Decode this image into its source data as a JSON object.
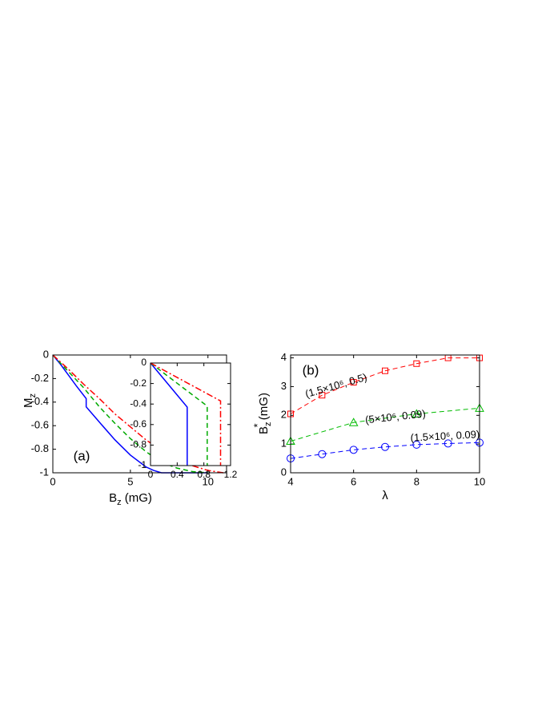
{
  "chart_data": [
    {
      "type": "line",
      "panel_label": "(a)",
      "xlabel": [
        "B",
        "z",
        " (mG)"
      ],
      "ylabel": [
        "M",
        "z"
      ],
      "xlim": [
        0,
        11.2
      ],
      "ylim": [
        -1,
        0
      ],
      "xticks": [
        0,
        5,
        10
      ],
      "yticks": [
        0,
        -0.2,
        -0.4,
        -0.6,
        -0.8,
        -1
      ],
      "series": [
        {
          "color": "#0000ff",
          "dash": "solid",
          "x": [
            0,
            0.5,
            1,
            1.5,
            2.15,
            2.15,
            3,
            4,
            5,
            6,
            6.5,
            7,
            10
          ],
          "values": [
            0,
            -0.08,
            -0.17,
            -0.26,
            -0.37,
            -0.44,
            -0.57,
            -0.72,
            -0.85,
            -0.95,
            -0.98,
            -1,
            -1
          ]
        },
        {
          "color": "#00aa00",
          "dash": "dashed",
          "x": [
            0,
            1,
            2,
            3,
            4,
            5,
            6,
            7,
            8,
            9,
            10
          ],
          "values": [
            0,
            -0.14,
            -0.28,
            -0.44,
            -0.58,
            -0.71,
            -0.82,
            -0.91,
            -0.96,
            -0.99,
            -1
          ]
        },
        {
          "color": "#ff0000",
          "dash": "dashdot",
          "x": [
            0,
            1,
            2,
            3,
            4,
            5,
            6,
            7,
            8,
            9,
            10,
            11
          ],
          "values": [
            0,
            -0.12,
            -0.25,
            -0.37,
            -0.5,
            -0.61,
            -0.72,
            -0.81,
            -0.88,
            -0.94,
            -0.98,
            -1
          ]
        }
      ]
    },
    {
      "type": "line",
      "xlim": [
        0,
        1.2
      ],
      "ylim": [
        -1,
        0
      ],
      "xticks": [
        0,
        0.4,
        0.8,
        1.2
      ],
      "yticks": [
        0,
        -0.2,
        -0.4,
        -0.6,
        -0.8,
        -1
      ],
      "series": [
        {
          "color": "#0000ff",
          "dash": "solid",
          "x": [
            0,
            0.55,
            0.55
          ],
          "values": [
            0,
            -0.43,
            -1
          ]
        },
        {
          "color": "#00aa00",
          "dash": "dashed",
          "x": [
            0,
            0.85,
            0.85
          ],
          "values": [
            0,
            -0.42,
            -1
          ]
        },
        {
          "color": "#ff0000",
          "dash": "dashdot",
          "x": [
            0,
            1.05,
            1.05
          ],
          "values": [
            0,
            -0.37,
            -1
          ]
        }
      ]
    },
    {
      "type": "line",
      "panel_label": "(b)",
      "xlabel": [
        "λ"
      ],
      "ylabel": [
        "B",
        "z",
        "*",
        " (mG)"
      ],
      "xlim": [
        4,
        10
      ],
      "ylim": [
        0,
        4.1
      ],
      "xticks": [
        4,
        6,
        8,
        10
      ],
      "yticks": [
        0,
        1,
        2,
        3,
        4
      ],
      "annotations": [
        "(1.5×10⁶, 0.5)",
        "(5×10⁶, 0.09)",
        "(1.5×10⁶, 0.09)"
      ],
      "series": [
        {
          "color": "#ff0000",
          "dash": "dashed",
          "marker": "square",
          "x": [
            4,
            5,
            6,
            7,
            8,
            9,
            10
          ],
          "values": [
            2.05,
            2.7,
            3.15,
            3.55,
            3.8,
            4.0,
            4.0
          ]
        },
        {
          "color": "#00bb00",
          "dash": "dashed",
          "marker": "triangle",
          "x": [
            4,
            6,
            8,
            10
          ],
          "values": [
            1.1,
            1.75,
            2.05,
            2.25
          ]
        },
        {
          "color": "#0000ff",
          "dash": "dashed",
          "marker": "circle",
          "x": [
            4,
            5,
            6,
            7,
            8,
            9,
            10
          ],
          "values": [
            0.5,
            0.65,
            0.8,
            0.9,
            0.98,
            1.02,
            1.05
          ]
        }
      ]
    }
  ]
}
